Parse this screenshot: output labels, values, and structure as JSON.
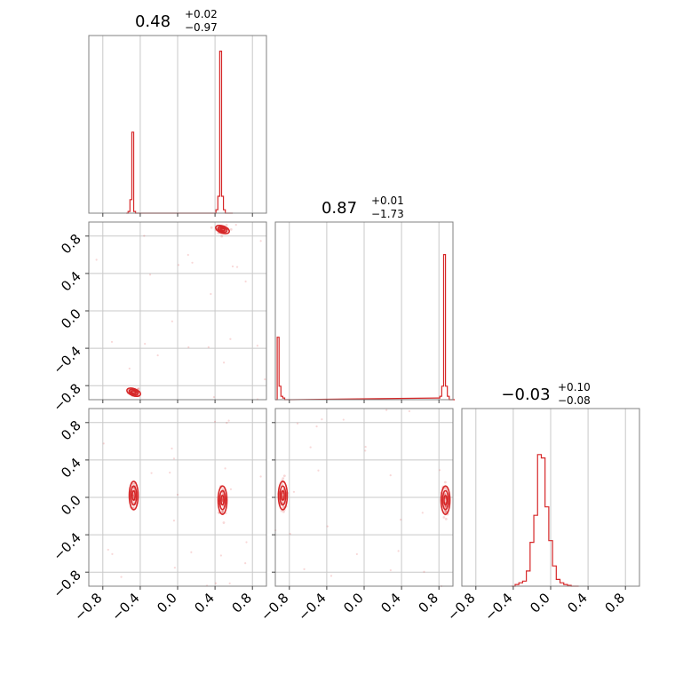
{
  "chart_data": {
    "type": "corner",
    "color": "#d62728",
    "parameters": [
      {
        "median": "0.48",
        "plus": "+0.02",
        "minus": "−0.97"
      },
      {
        "median": "0.87",
        "plus": "+0.01",
        "minus": "−1.73"
      },
      {
        "median": "−0.03",
        "plus": "+0.10",
        "minus": "−0.08"
      }
    ],
    "axis_range": [
      -0.95,
      0.95
    ],
    "ticks": [
      -0.8,
      -0.4,
      0.0,
      0.4,
      0.8
    ],
    "tick_labels": [
      "−0.8",
      "−0.4",
      "0.0",
      "0.4",
      "0.8"
    ],
    "histograms": [
      {
        "bins": [
          -0.55,
          -0.53,
          -0.51,
          -0.49,
          -0.47,
          -0.45,
          -0.43,
          -0.41,
          -0.39,
          0.39,
          0.41,
          0.43,
          0.45,
          0.47,
          0.49,
          0.51,
          0.53,
          0.55,
          0.57
        ],
        "counts": [
          0,
          0.01,
          0.08,
          0.48,
          0.01,
          0,
          0,
          0,
          0,
          0,
          0.02,
          0.1,
          0.96,
          0.1,
          0.02,
          0,
          0,
          0,
          0
        ]
      },
      {
        "bins": [
          -0.95,
          -0.93,
          -0.91,
          -0.89,
          -0.87,
          -0.85,
          -0.83,
          -0.81,
          -0.79,
          0.79,
          0.81,
          0.83,
          0.85,
          0.87,
          0.89,
          0.91,
          0.93,
          0.95
        ],
        "counts": [
          0,
          0.37,
          0.08,
          0.02,
          0.01,
          0,
          0,
          0,
          0,
          0.01,
          0.02,
          0.08,
          0.86,
          0.08,
          0.02,
          0,
          0,
          0
        ]
      },
      {
        "bins": [
          -0.42,
          -0.38,
          -0.34,
          -0.3,
          -0.26,
          -0.22,
          -0.18,
          -0.14,
          -0.1,
          -0.06,
          -0.02,
          0.02,
          0.06,
          0.1,
          0.14,
          0.18,
          0.22,
          0.26
        ],
        "counts": [
          0,
          0.01,
          0.02,
          0.03,
          0.09,
          0.26,
          0.42,
          0.78,
          0.76,
          0.47,
          0.27,
          0.12,
          0.04,
          0.02,
          0.01,
          0.005,
          0,
          0
        ]
      }
    ],
    "modes_2d": [
      {
        "pair": [
          0,
          1
        ],
        "centers": [
          [
            -0.47,
            -0.87
          ],
          [
            0.48,
            0.87
          ]
        ]
      },
      {
        "pair": [
          0,
          2
        ],
        "centers": [
          [
            -0.47,
            0.02
          ],
          [
            0.48,
            -0.03
          ]
        ]
      },
      {
        "pair": [
          1,
          2
        ],
        "centers": [
          [
            -0.87,
            0.02
          ],
          [
            0.87,
            -0.03
          ]
        ]
      }
    ]
  }
}
